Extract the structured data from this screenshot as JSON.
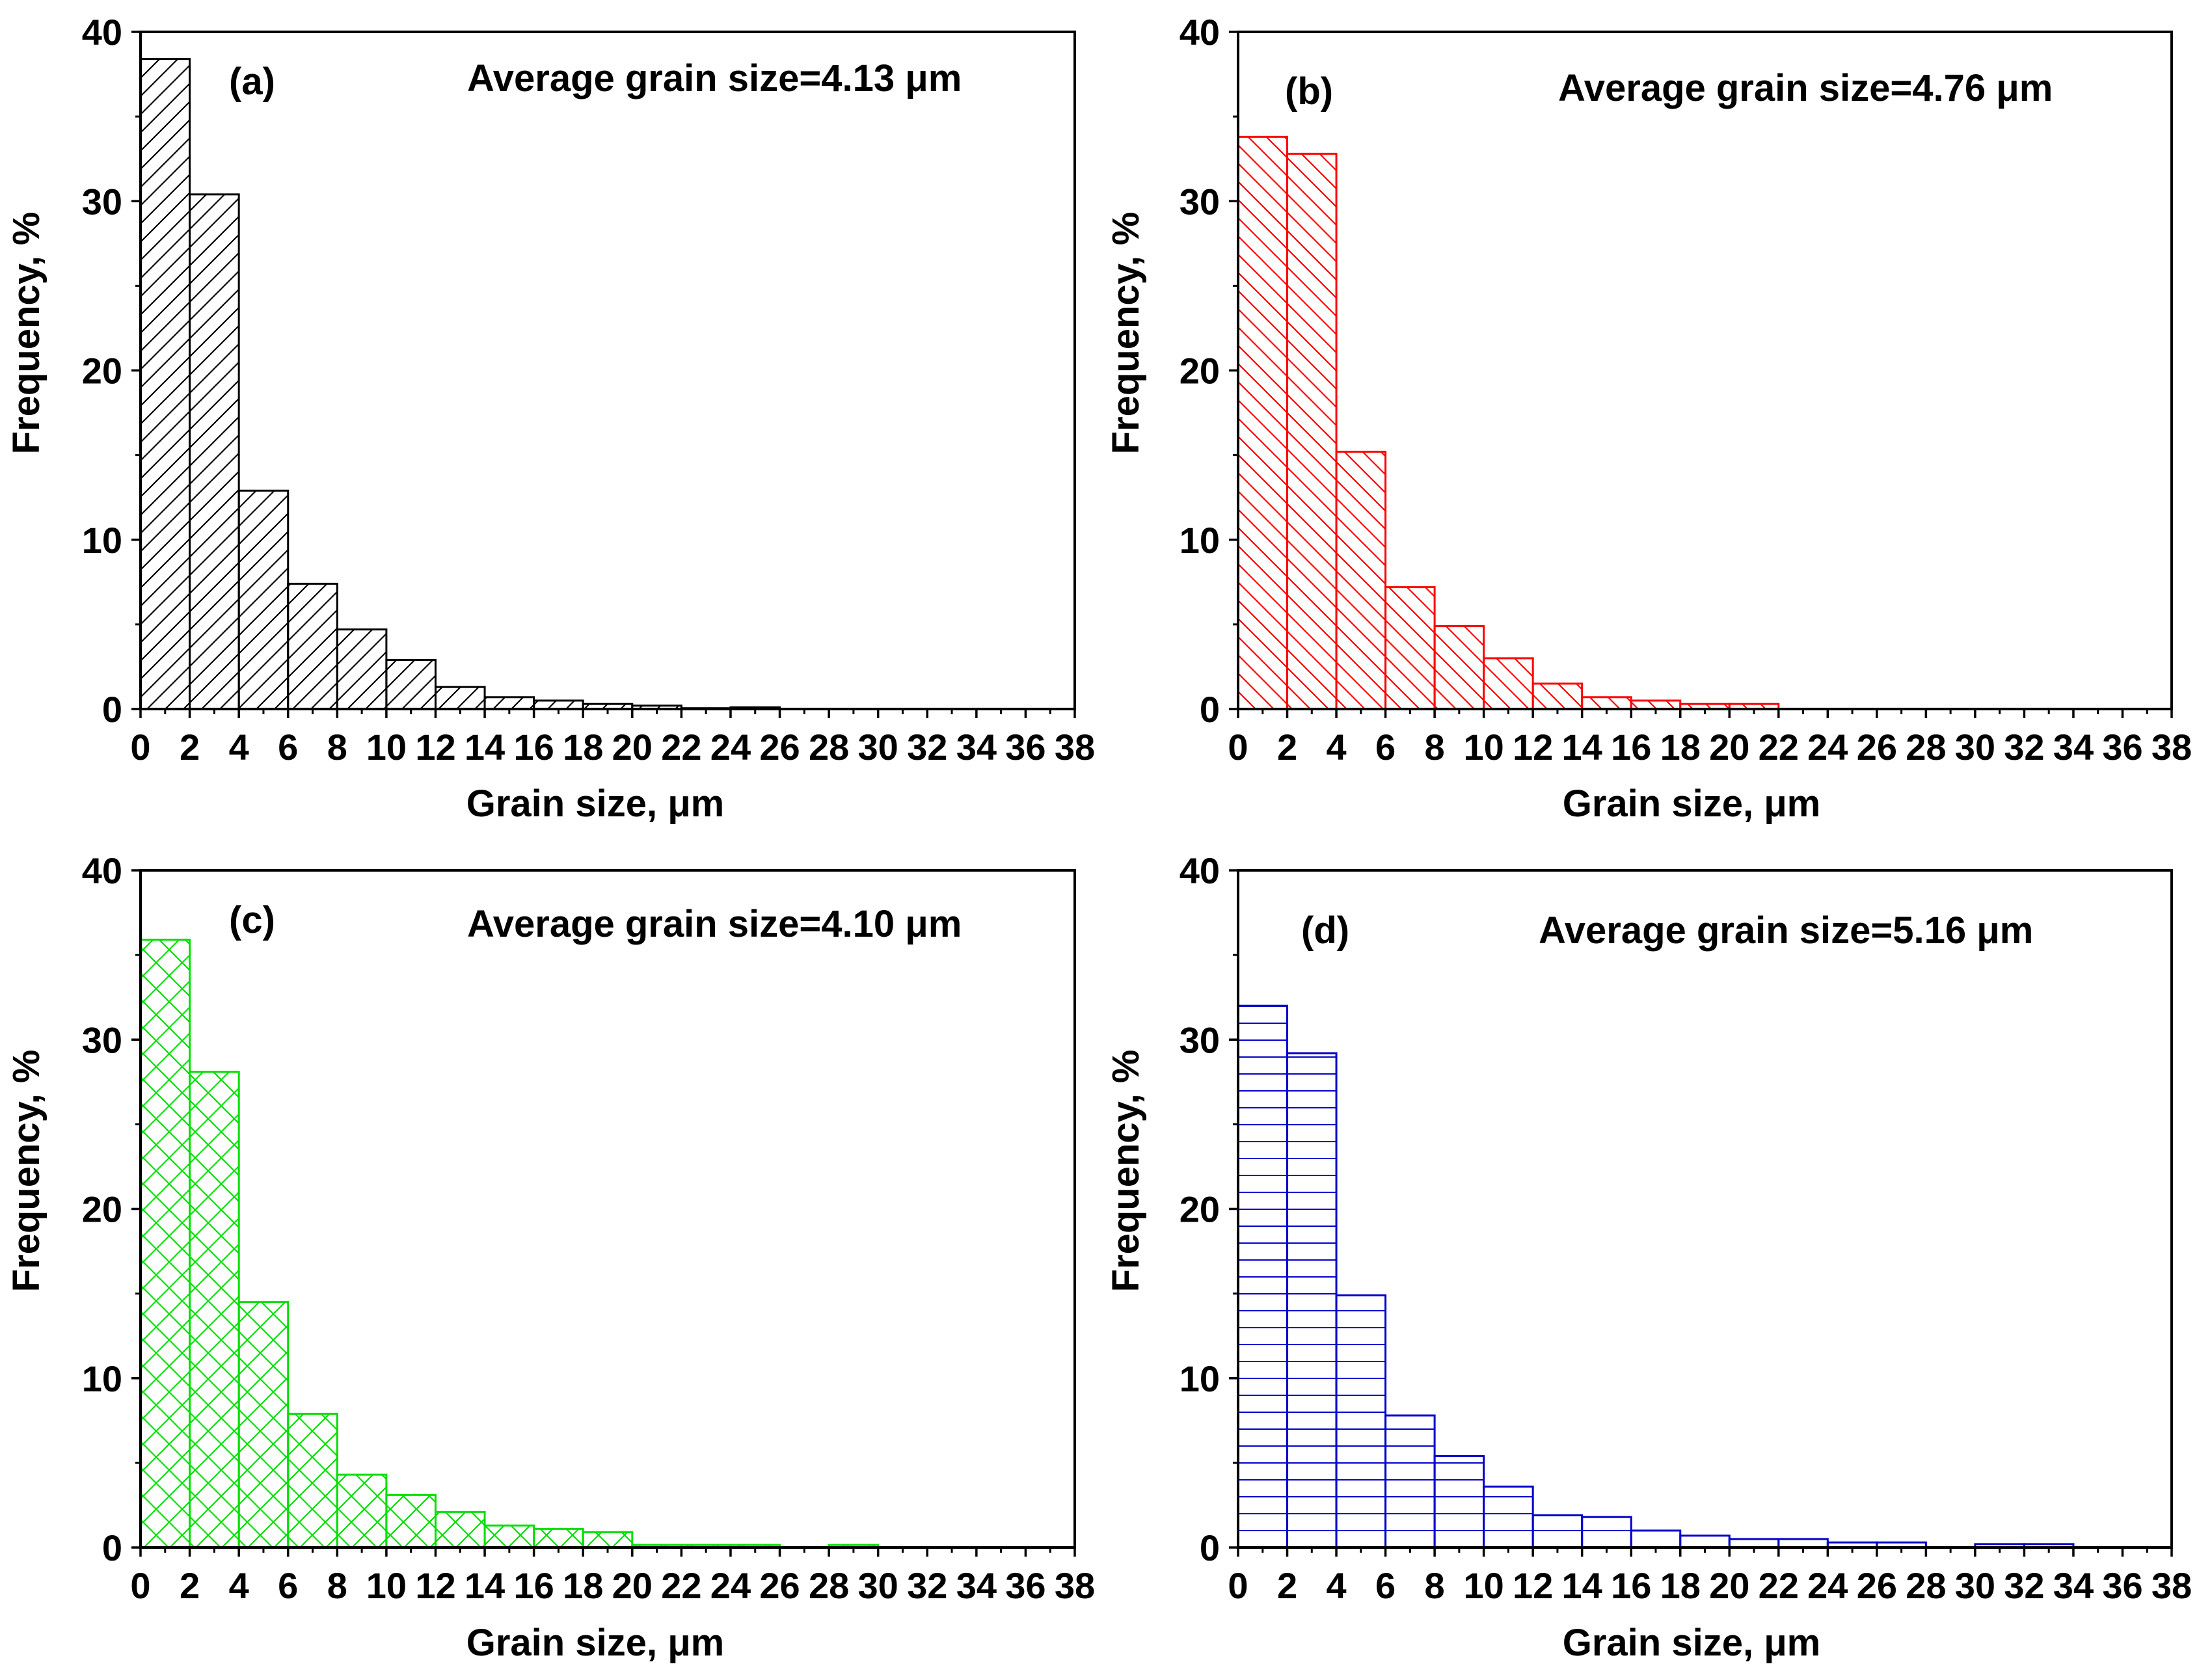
{
  "chart_data": [
    {
      "type": "bar",
      "panel_label": "(a)",
      "annotation": "Average grain size=4.13 μm",
      "xlabel": "Grain size, μm",
      "ylabel": "Frequency, %",
      "xlim": [
        0,
        38
      ],
      "ylim": [
        0,
        40
      ],
      "x_ticks": [
        "0",
        "2",
        "4",
        "6",
        "8",
        "10",
        "12",
        "14",
        "16",
        "18",
        "20",
        "22",
        "24",
        "26",
        "28",
        "30",
        "32",
        "34",
        "36",
        "38"
      ],
      "y_ticks": [
        "0",
        "10",
        "20",
        "30",
        "40"
      ],
      "color": "#000000",
      "hatch": "forward-diagonal",
      "bin_width": 2,
      "bins": [
        0,
        2,
        4,
        6,
        8,
        10,
        12,
        14,
        16,
        18,
        20,
        22,
        24
      ],
      "values": [
        38.4,
        30.4,
        12.9,
        7.4,
        4.7,
        2.9,
        1.3,
        0.7,
        0.5,
        0.3,
        0.2,
        0.05,
        0.1
      ]
    },
    {
      "type": "bar",
      "panel_label": "(b)",
      "annotation": "Average grain size=4.76 μm",
      "xlabel": "Grain size, μm",
      "ylabel": "Frequency, %",
      "xlim": [
        0,
        38
      ],
      "ylim": [
        0,
        40
      ],
      "x_ticks": [
        "0",
        "2",
        "4",
        "6",
        "8",
        "10",
        "12",
        "14",
        "16",
        "18",
        "20",
        "22",
        "24",
        "26",
        "28",
        "30",
        "32",
        "34",
        "36",
        "38"
      ],
      "y_ticks": [
        "0",
        "10",
        "20",
        "30",
        "40"
      ],
      "color": "#ff0000",
      "hatch": "back-diagonal",
      "bin_width": 2,
      "bins": [
        0,
        2,
        4,
        6,
        8,
        10,
        12,
        14,
        16,
        18,
        20
      ],
      "values": [
        33.8,
        32.8,
        15.2,
        7.2,
        4.9,
        3.0,
        1.5,
        0.7,
        0.5,
        0.3,
        0.3
      ]
    },
    {
      "type": "bar",
      "panel_label": "(c)",
      "annotation": "Average grain size=4.10 μm",
      "xlabel": "Grain size, μm",
      "ylabel": "Frequency, %",
      "xlim": [
        0,
        38
      ],
      "ylim": [
        0,
        40
      ],
      "x_ticks": [
        "0",
        "2",
        "4",
        "6",
        "8",
        "10",
        "12",
        "14",
        "16",
        "18",
        "20",
        "22",
        "24",
        "26",
        "28",
        "30",
        "32",
        "34",
        "36",
        "38"
      ],
      "y_ticks": [
        "0",
        "10",
        "20",
        "30",
        "40"
      ],
      "color": "#00e000",
      "hatch": "crosshatch",
      "bin_width": 2,
      "bins": [
        0,
        2,
        4,
        6,
        8,
        10,
        12,
        14,
        16,
        18,
        20,
        22,
        24,
        26,
        28
      ],
      "values": [
        35.9,
        28.1,
        14.5,
        7.9,
        4.3,
        3.1,
        2.1,
        1.3,
        1.1,
        0.9,
        0.15,
        0.15,
        0.15,
        0,
        0.15
      ]
    },
    {
      "type": "bar",
      "panel_label": "(d)",
      "annotation": "Average grain size=5.16 μm",
      "xlabel": "Grain size, μm",
      "ylabel": "Frequency, %",
      "xlim": [
        0,
        38
      ],
      "ylim": [
        0,
        40
      ],
      "x_ticks": [
        "0",
        "2",
        "4",
        "6",
        "8",
        "10",
        "12",
        "14",
        "16",
        "18",
        "20",
        "22",
        "24",
        "26",
        "28",
        "30",
        "32",
        "34",
        "36",
        "38"
      ],
      "y_ticks": [
        "0",
        "10",
        "20",
        "30",
        "40"
      ],
      "color": "#0000cc",
      "hatch": "horizontal",
      "bin_width": 2,
      "bins": [
        0,
        2,
        4,
        6,
        8,
        10,
        12,
        14,
        16,
        18,
        20,
        22,
        24,
        26,
        28,
        30,
        32
      ],
      "values": [
        32.0,
        29.2,
        14.9,
        7.8,
        5.4,
        3.6,
        1.9,
        1.8,
        1.0,
        0.7,
        0.5,
        0.5,
        0.3,
        0.3,
        0,
        0.2,
        0.2
      ]
    }
  ]
}
